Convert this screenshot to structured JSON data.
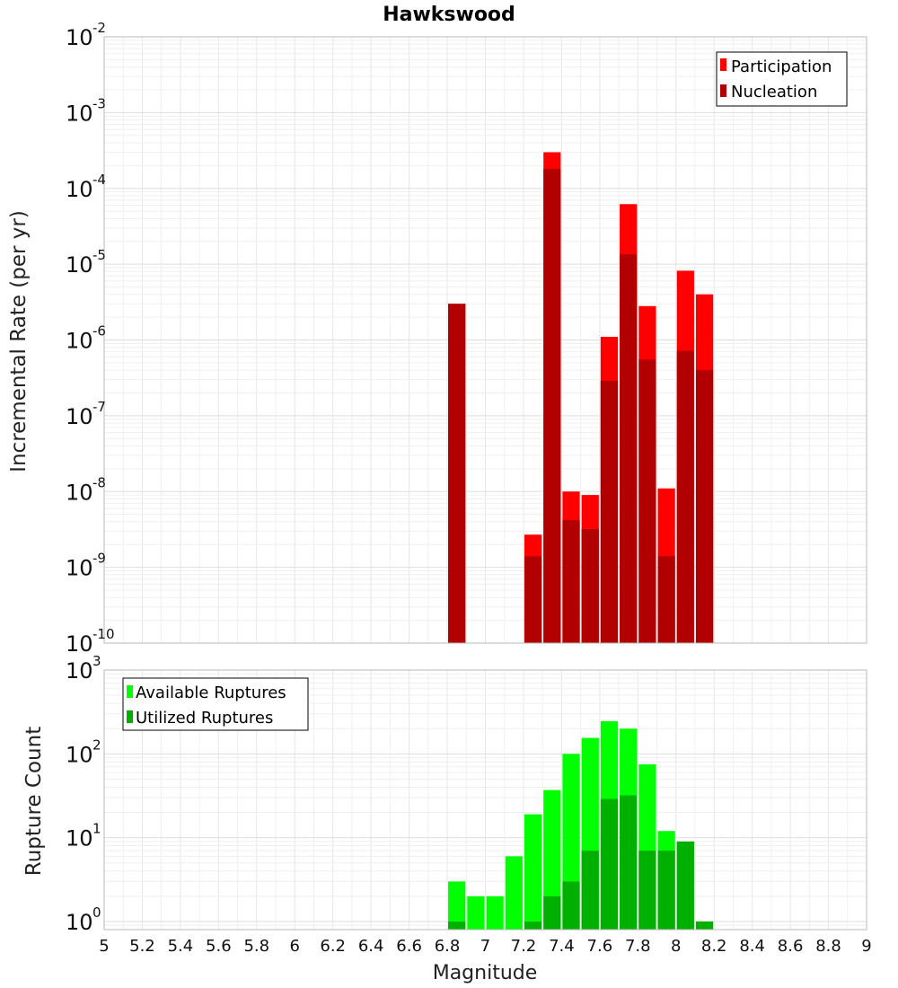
{
  "chart_data": [
    {
      "type": "bar",
      "title": "Hawkswood",
      "xlabel": "",
      "ylabel": "Incremental Rate (per yr)",
      "yscale": "log",
      "xlim": [
        5,
        9
      ],
      "ylim": [
        1e-10,
        0.01
      ],
      "bin_width": 0.1,
      "y_tick_labels": [
        "10-10",
        "10-9",
        "10-8",
        "10-7",
        "10-6",
        "10-5",
        "10-4",
        "10-3",
        "10-2"
      ],
      "legend": "top-right",
      "series": [
        {
          "name": "Participation",
          "color": "#ff0000",
          "x": [
            6.85,
            7.25,
            7.35,
            7.45,
            7.55,
            7.65,
            7.75,
            7.85,
            7.95,
            8.05,
            8.15
          ],
          "values": [
            3e-06,
            2.7e-09,
            0.0003,
            1e-08,
            9e-09,
            1.1e-06,
            6.2e-05,
            2.8e-06,
            1.1e-08,
            8.2e-06,
            4e-06
          ]
        },
        {
          "name": "Nucleation",
          "color": "#b20000",
          "x": [
            6.85,
            7.25,
            7.35,
            7.45,
            7.55,
            7.65,
            7.75,
            7.85,
            7.95,
            8.05,
            8.15
          ],
          "values": [
            3e-06,
            1.4e-09,
            0.00018,
            4.2e-09,
            3.2e-09,
            2.9e-07,
            1.35e-05,
            5.5e-07,
            1.4e-09,
            7.2e-07,
            4e-07
          ]
        }
      ]
    },
    {
      "type": "bar",
      "title": "",
      "xlabel": "Magnitude",
      "ylabel": "Rupture Count",
      "yscale": "log",
      "xlim": [
        5,
        9
      ],
      "ylim": [
        0.8,
        1000
      ],
      "bin_width": 0.1,
      "x_tick_labels": [
        "5",
        "5.2",
        "5.4",
        "5.6",
        "5.8",
        "6",
        "6.2",
        "6.4",
        "6.6",
        "6.8",
        "7",
        "7.2",
        "7.4",
        "7.6",
        "7.8",
        "8",
        "8.2",
        "8.4",
        "8.6",
        "8.8",
        "9"
      ],
      "y_tick_labels": [
        "100",
        "101",
        "102",
        "103"
      ],
      "legend": "top-left",
      "series": [
        {
          "name": "Available Ruptures",
          "color": "#00ff00",
          "x": [
            6.85,
            6.95,
            7.05,
            7.15,
            7.25,
            7.35,
            7.45,
            7.55,
            7.65,
            7.75,
            7.85,
            7.95,
            8.05
          ],
          "values": [
            3,
            2,
            2,
            6,
            19,
            37,
            100,
            155,
            245,
            200,
            75,
            12,
            9
          ]
        },
        {
          "name": "Utilized Ruptures",
          "color": "#00b000",
          "x": [
            6.85,
            7.25,
            7.35,
            7.45,
            7.55,
            7.65,
            7.75,
            7.85,
            7.95,
            8.05,
            8.15
          ],
          "values": [
            1,
            1,
            2,
            3,
            7,
            29,
            32,
            7,
            7,
            9,
            1
          ]
        }
      ]
    }
  ]
}
